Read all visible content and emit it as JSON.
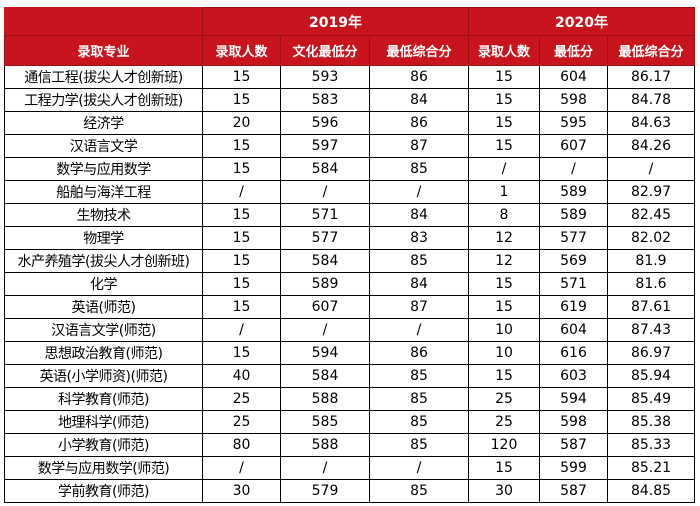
{
  "header": {
    "year_2019": "2019年",
    "year_2020": "2020年",
    "columns": [
      "录取专业",
      "录取人数",
      "文化最低分",
      "最低综合分",
      "录取人数",
      "最低分",
      "最低综合分"
    ]
  },
  "rows": [
    {
      "major": "通信工程(拔尖人才创新班)",
      "y2019": {
        "admitted": "15",
        "min_culture": "593",
        "min_composite": "86"
      },
      "y2020": {
        "admitted": "15",
        "min_score": "604",
        "min_composite": "86.17"
      }
    },
    {
      "major": "工程力学(拔尖人才创新班)",
      "y2019": {
        "admitted": "15",
        "min_culture": "583",
        "min_composite": "84"
      },
      "y2020": {
        "admitted": "15",
        "min_score": "598",
        "min_composite": "84.78"
      }
    },
    {
      "major": "经济学",
      "y2019": {
        "admitted": "20",
        "min_culture": "596",
        "min_composite": "86"
      },
      "y2020": {
        "admitted": "15",
        "min_score": "595",
        "min_composite": "84.63"
      }
    },
    {
      "major": "汉语言文学",
      "y2019": {
        "admitted": "15",
        "min_culture": "597",
        "min_composite": "87"
      },
      "y2020": {
        "admitted": "15",
        "min_score": "607",
        "min_composite": "84.26"
      }
    },
    {
      "major": "数学与应用数学",
      "y2019": {
        "admitted": "15",
        "min_culture": "584",
        "min_composite": "85"
      },
      "y2020": {
        "admitted": "/",
        "min_score": "/",
        "min_composite": "/"
      }
    },
    {
      "major": "船舶与海洋工程",
      "y2019": {
        "admitted": "/",
        "min_culture": "/",
        "min_composite": "/"
      },
      "y2020": {
        "admitted": "1",
        "min_score": "589",
        "min_composite": "82.97"
      }
    },
    {
      "major": "生物技术",
      "y2019": {
        "admitted": "15",
        "min_culture": "571",
        "min_composite": "84"
      },
      "y2020": {
        "admitted": "8",
        "min_score": "589",
        "min_composite": "82.45"
      }
    },
    {
      "major": "物理学",
      "y2019": {
        "admitted": "15",
        "min_culture": "577",
        "min_composite": "83"
      },
      "y2020": {
        "admitted": "12",
        "min_score": "577",
        "min_composite": "82.02"
      }
    },
    {
      "major": "水产养殖学(拔尖人才创新班)",
      "y2019": {
        "admitted": "15",
        "min_culture": "584",
        "min_composite": "85"
      },
      "y2020": {
        "admitted": "12",
        "min_score": "569",
        "min_composite": "81.9"
      }
    },
    {
      "major": "化学",
      "y2019": {
        "admitted": "15",
        "min_culture": "589",
        "min_composite": "84"
      },
      "y2020": {
        "admitted": "15",
        "min_score": "571",
        "min_composite": "81.6"
      }
    },
    {
      "major": "英语(师范)",
      "y2019": {
        "admitted": "15",
        "min_culture": "607",
        "min_composite": "87"
      },
      "y2020": {
        "admitted": "15",
        "min_score": "619",
        "min_composite": "87.61"
      }
    },
    {
      "major": "汉语言文学(师范)",
      "y2019": {
        "admitted": "/",
        "min_culture": "/",
        "min_composite": "/"
      },
      "y2020": {
        "admitted": "10",
        "min_score": "604",
        "min_composite": "87.43"
      }
    },
    {
      "major": "思想政治教育(师范)",
      "y2019": {
        "admitted": "15",
        "min_culture": "594",
        "min_composite": "86"
      },
      "y2020": {
        "admitted": "10",
        "min_score": "616",
        "min_composite": "86.97"
      }
    },
    {
      "major": "英语(小学师资)(师范)",
      "y2019": {
        "admitted": "40",
        "min_culture": "584",
        "min_composite": "85"
      },
      "y2020": {
        "admitted": "15",
        "min_score": "603",
        "min_composite": "85.94"
      }
    },
    {
      "major": "科学教育(师范)",
      "y2019": {
        "admitted": "25",
        "min_culture": "588",
        "min_composite": "85"
      },
      "y2020": {
        "admitted": "25",
        "min_score": "594",
        "min_composite": "85.49"
      }
    },
    {
      "major": "地理科学(师范)",
      "y2019": {
        "admitted": "25",
        "min_culture": "585",
        "min_composite": "85"
      },
      "y2020": {
        "admitted": "25",
        "min_score": "598",
        "min_composite": "85.38"
      }
    },
    {
      "major": "小学教育(师范)",
      "y2019": {
        "admitted": "80",
        "min_culture": "588",
        "min_composite": "85"
      },
      "y2020": {
        "admitted": "120",
        "min_score": "587",
        "min_composite": "85.33"
      }
    },
    {
      "major": "数学与应用数学(师范)",
      "y2019": {
        "admitted": "/",
        "min_culture": "/",
        "min_composite": "/"
      },
      "y2020": {
        "admitted": "15",
        "min_score": "599",
        "min_composite": "85.21"
      }
    },
    {
      "major": "学前教育(师范)",
      "y2019": {
        "admitted": "30",
        "min_culture": "579",
        "min_composite": "85"
      },
      "y2020": {
        "admitted": "30",
        "min_score": "587",
        "min_composite": "84.85"
      }
    }
  ]
}
